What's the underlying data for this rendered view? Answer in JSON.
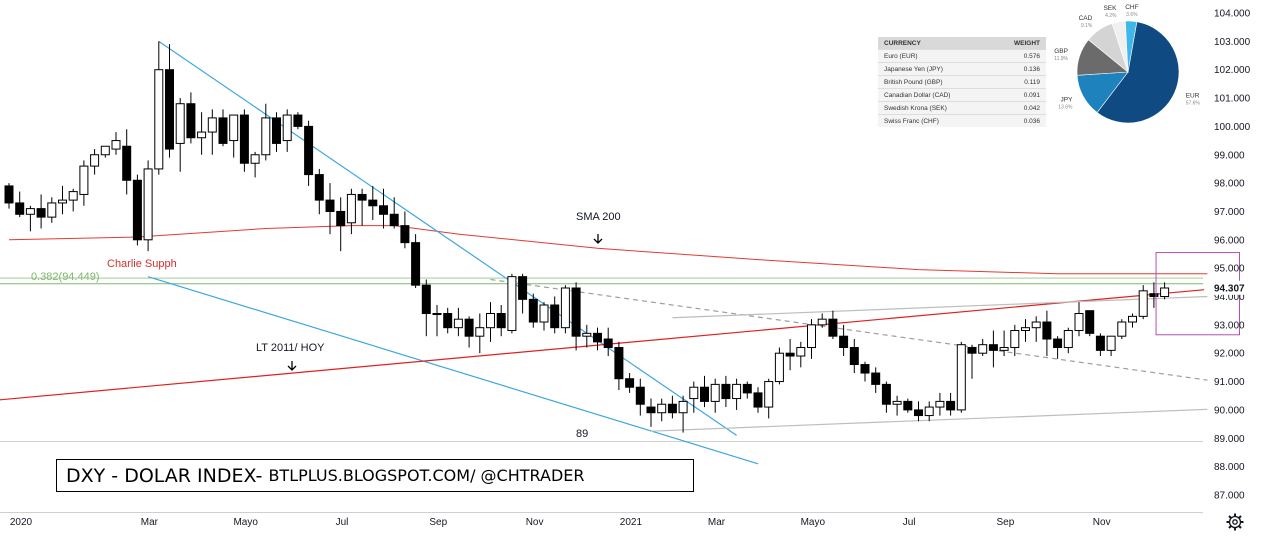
{
  "chart_data": {
    "type": "candlestick",
    "symbol": "DXY",
    "price_axis": {
      "range": [
        86.6,
        104.4
      ],
      "ticks": [
        "104.000",
        "103.000",
        "102.000",
        "101.000",
        "100.000",
        "99.000",
        "98.000",
        "97.000",
        "96.000",
        "95.000",
        "94.000",
        "93.000",
        "92.000",
        "91.000",
        "90.000",
        "89.000",
        "88.000",
        "87.000"
      ],
      "last_price_label": "94.307"
    },
    "time_axis": {
      "labels": [
        "2020",
        "Mar",
        "Mayo",
        "Jul",
        "Sep",
        "Nov",
        "2021",
        "Mar",
        "Mayo",
        "Jul",
        "Sep",
        "Nov"
      ],
      "label_candle_index": [
        0,
        12,
        21,
        30,
        39,
        48,
        57,
        65,
        74,
        83,
        92,
        101
      ]
    },
    "candles": [
      [
        97.9,
        98.0,
        97.1,
        97.3
      ],
      [
        97.3,
        97.7,
        96.8,
        96.9
      ],
      [
        96.9,
        97.2,
        96.3,
        97.1
      ],
      [
        97.1,
        97.6,
        96.4,
        96.8
      ],
      [
        96.8,
        97.5,
        96.6,
        97.3
      ],
      [
        97.3,
        97.9,
        96.9,
        97.4
      ],
      [
        97.4,
        97.8,
        97.0,
        97.7
      ],
      [
        97.6,
        98.8,
        97.2,
        98.6
      ],
      [
        98.6,
        99.2,
        98.3,
        99.0
      ],
      [
        99.0,
        99.3,
        98.9,
        99.3
      ],
      [
        99.2,
        99.8,
        99.0,
        99.5
      ],
      [
        99.3,
        99.9,
        97.6,
        98.1
      ],
      [
        98.1,
        98.3,
        95.8,
        96.0
      ],
      [
        96.0,
        98.8,
        95.6,
        98.5
      ],
      [
        98.5,
        103.0,
        98.3,
        102.0
      ],
      [
        102.0,
        102.9,
        98.9,
        99.2
      ],
      [
        99.4,
        101.0,
        98.4,
        100.8
      ],
      [
        100.8,
        101.2,
        99.4,
        99.6
      ],
      [
        99.6,
        100.5,
        99.0,
        99.8
      ],
      [
        99.8,
        100.6,
        99.0,
        100.3
      ],
      [
        100.3,
        100.6,
        99.3,
        99.4
      ],
      [
        99.5,
        100.4,
        98.9,
        100.4
      ],
      [
        100.4,
        100.6,
        98.4,
        98.7
      ],
      [
        98.7,
        99.1,
        98.2,
        99.0
      ],
      [
        99.0,
        100.8,
        98.8,
        100.3
      ],
      [
        100.3,
        100.5,
        99.1,
        99.4
      ],
      [
        99.5,
        100.6,
        99.1,
        100.4
      ],
      [
        100.4,
        100.5,
        99.9,
        100.0
      ],
      [
        100.0,
        100.2,
        97.9,
        98.3
      ],
      [
        98.3,
        98.5,
        96.9,
        97.4
      ],
      [
        97.4,
        98.0,
        96.2,
        97.0
      ],
      [
        97.0,
        97.5,
        95.6,
        96.5
      ],
      [
        96.6,
        97.8,
        96.2,
        97.6
      ],
      [
        97.6,
        97.8,
        96.5,
        97.4
      ],
      [
        97.4,
        97.9,
        96.7,
        97.2
      ],
      [
        97.2,
        97.8,
        96.4,
        96.9
      ],
      [
        96.9,
        97.5,
        96.4,
        96.5
      ],
      [
        96.5,
        97.0,
        95.7,
        95.9
      ],
      [
        95.9,
        96.2,
        94.3,
        94.4
      ],
      [
        94.4,
        94.6,
        92.6,
        93.4
      ],
      [
        93.4,
        93.7,
        92.6,
        93.4
      ],
      [
        93.4,
        93.6,
        92.7,
        92.9
      ],
      [
        92.9,
        93.6,
        92.6,
        93.2
      ],
      [
        93.2,
        93.3,
        92.2,
        92.6
      ],
      [
        92.6,
        93.4,
        92.0,
        92.9
      ],
      [
        92.9,
        93.8,
        92.4,
        93.4
      ],
      [
        93.4,
        93.7,
        92.6,
        92.9
      ],
      [
        92.8,
        94.8,
        92.7,
        94.7
      ],
      [
        94.7,
        94.8,
        93.4,
        93.9
      ],
      [
        93.9,
        94.1,
        92.9,
        93.1
      ],
      [
        93.1,
        93.8,
        92.8,
        93.7
      ],
      [
        93.7,
        94.0,
        92.7,
        92.9
      ],
      [
        92.9,
        94.4,
        92.7,
        94.3
      ],
      [
        94.3,
        94.5,
        92.1,
        92.6
      ],
      [
        92.6,
        93.0,
        92.2,
        92.7
      ],
      [
        92.7,
        92.9,
        92.1,
        92.4
      ],
      [
        92.5,
        92.9,
        91.9,
        92.2
      ],
      [
        92.2,
        92.4,
        90.7,
        91.1
      ],
      [
        91.1,
        91.3,
        90.6,
        90.8
      ],
      [
        90.8,
        91.1,
        89.8,
        90.2
      ],
      [
        90.1,
        90.4,
        89.4,
        89.9
      ],
      [
        89.9,
        90.4,
        89.6,
        90.2
      ],
      [
        90.2,
        90.5,
        89.7,
        89.9
      ],
      [
        89.9,
        90.5,
        89.2,
        90.3
      ],
      [
        90.4,
        91.0,
        89.9,
        90.8
      ],
      [
        90.8,
        91.2,
        90.1,
        90.3
      ],
      [
        90.3,
        91.1,
        89.9,
        90.9
      ],
      [
        90.9,
        91.2,
        90.1,
        90.4
      ],
      [
        90.4,
        91.1,
        90.0,
        90.9
      ],
      [
        90.9,
        91.0,
        90.4,
        90.6
      ],
      [
        90.6,
        90.8,
        89.9,
        90.1
      ],
      [
        90.1,
        91.1,
        89.7,
        91.0
      ],
      [
        91.0,
        92.2,
        90.9,
        92.0
      ],
      [
        92.0,
        92.5,
        91.4,
        91.9
      ],
      [
        91.9,
        92.4,
        91.5,
        92.2
      ],
      [
        92.2,
        93.2,
        91.8,
        93.0
      ],
      [
        93.0,
        93.4,
        92.9,
        93.2
      ],
      [
        93.2,
        93.5,
        92.5,
        92.6
      ],
      [
        92.6,
        93.0,
        91.9,
        92.2
      ],
      [
        92.2,
        92.5,
        91.3,
        91.6
      ],
      [
        91.6,
        91.7,
        91.0,
        91.3
      ],
      [
        91.3,
        91.5,
        90.6,
        90.9
      ],
      [
        90.9,
        91.0,
        89.9,
        90.2
      ],
      [
        90.2,
        90.5,
        89.8,
        90.3
      ],
      [
        90.3,
        90.4,
        89.9,
        90.0
      ],
      [
        90.0,
        90.3,
        89.6,
        89.8
      ],
      [
        89.8,
        90.3,
        89.6,
        90.1
      ],
      [
        90.1,
        90.6,
        89.8,
        90.3
      ],
      [
        90.3,
        90.6,
        89.8,
        90.0
      ],
      [
        90.0,
        92.4,
        89.9,
        92.3
      ],
      [
        92.2,
        92.3,
        91.1,
        92.0
      ],
      [
        92.0,
        92.5,
        91.9,
        92.3
      ],
      [
        92.3,
        92.8,
        91.5,
        92.1
      ],
      [
        92.1,
        92.8,
        91.9,
        92.2
      ],
      [
        92.2,
        93.0,
        91.9,
        92.8
      ],
      [
        92.8,
        93.2,
        92.4,
        92.9
      ],
      [
        92.9,
        93.3,
        92.4,
        93.1
      ],
      [
        93.1,
        93.5,
        91.9,
        92.5
      ],
      [
        92.5,
        92.6,
        91.8,
        92.2
      ],
      [
        92.2,
        92.9,
        92.0,
        92.8
      ],
      [
        92.8,
        93.8,
        92.6,
        93.4
      ],
      [
        93.5,
        93.5,
        92.6,
        92.7
      ],
      [
        92.6,
        92.7,
        91.9,
        92.1
      ],
      [
        92.1,
        92.6,
        91.9,
        92.6
      ],
      [
        92.6,
        93.2,
        92.5,
        93.1
      ],
      [
        93.1,
        93.4,
        92.9,
        93.3
      ],
      [
        93.3,
        94.4,
        93.2,
        94.2
      ],
      [
        94.1,
        94.5,
        93.6,
        94.0
      ],
      [
        94.0,
        94.5,
        93.9,
        94.3
      ]
    ],
    "indicators": {
      "sma_label": "SMA 200",
      "sma_200": [
        [
          0,
          96.0
        ],
        [
          12,
          96.1
        ],
        [
          24,
          96.4
        ],
        [
          32,
          96.5
        ],
        [
          36,
          96.5
        ],
        [
          42,
          96.2
        ],
        [
          55,
          95.7
        ],
        [
          70,
          95.3
        ],
        [
          85,
          94.95
        ],
        [
          98,
          94.8
        ],
        [
          112,
          94.8
        ]
      ],
      "fib_label": "0.382(94.449)",
      "fib_level": 94.449,
      "fib_upper_level": 94.65
    },
    "annotations": [
      {
        "text": "Charlie Supph",
        "color": "#d32f2f"
      },
      {
        "text": "SMA 200"
      },
      {
        "text": "LT 2011/ HOY"
      },
      {
        "text": "89"
      }
    ],
    "trendlines": [
      {
        "name": "wedge-upper",
        "color": "#3da6e0",
        "points": [
          [
            14,
            103.0
          ],
          [
            68,
            89.1
          ]
        ]
      },
      {
        "name": "wedge-lower",
        "color": "#3da6e0",
        "points": [
          [
            13,
            94.7
          ],
          [
            70,
            88.1
          ]
        ]
      },
      {
        "name": "long-term-support",
        "color": "#e02020",
        "points": [
          [
            -1,
            90.35
          ],
          [
            112,
            94.25
          ]
        ]
      },
      {
        "name": "dashed-resistance",
        "color": "#9e9e9e",
        "dashed": true,
        "points": [
          [
            45,
            94.6
          ],
          [
            112,
            91.05
          ]
        ]
      },
      {
        "name": "channel-top",
        "color": "#bdbdbd",
        "points": [
          [
            62,
            93.25
          ],
          [
            112,
            94.0
          ]
        ]
      },
      {
        "name": "channel-bottom",
        "color": "#bdbdbd",
        "points": [
          [
            60,
            89.25
          ],
          [
            112,
            90.02
          ]
        ]
      }
    ],
    "highlight_box": {
      "color": "#b54fb5",
      "from_candle": 107.2,
      "to_candle": 115,
      "price_range": [
        92.65,
        95.55
      ]
    },
    "currency_weights": {
      "headers": [
        "CURRENCY",
        "WEIGHT"
      ],
      "rows": [
        {
          "currency": "Euro (EUR)",
          "weight": "0.576"
        },
        {
          "currency": "Japanese Yen (JPY)",
          "weight": "0.136"
        },
        {
          "currency": "British Pound (GBP)",
          "weight": "0.119"
        },
        {
          "currency": "Canadian Dollar (CAD)",
          "weight": "0.091"
        },
        {
          "currency": "Swedish Krona (SEK)",
          "weight": "0.042"
        },
        {
          "currency": "Swiss Franc (CHF)",
          "weight": "0.036"
        }
      ]
    },
    "pie": {
      "type": "pie",
      "slices": [
        {
          "label": "EUR",
          "pct_label": "57.6%",
          "value": 57.6,
          "color": "#0f4a82"
        },
        {
          "label": "JPY",
          "pct_label": "13.6%",
          "value": 13.6,
          "color": "#1e82bd"
        },
        {
          "label": "GBP",
          "pct_label": "11.9%",
          "value": 11.9,
          "color": "#6b6b6b"
        },
        {
          "label": "CAD",
          "pct_label": "9.1%",
          "value": 9.1,
          "color": "#d4d4d4"
        },
        {
          "label": "SEK",
          "pct_label": "4.2%",
          "value": 4.2,
          "color": "#f0f0f0"
        },
        {
          "label": "CHF",
          "pct_label": "3.6%",
          "value": 3.6,
          "color": "#3fb7e8"
        }
      ]
    }
  },
  "header_title": {
    "part1": "DXY - DOLAR INDEX- ",
    "part2": "BTLPLUS.BLOGSPOT.COM/ @CHTRADER"
  },
  "icons": {
    "settings": "gear-icon"
  },
  "colors": {
    "bull_body": "#ffffff",
    "bear_body": "#000000",
    "sma": "#e53935",
    "fib": "#7cb96b"
  }
}
